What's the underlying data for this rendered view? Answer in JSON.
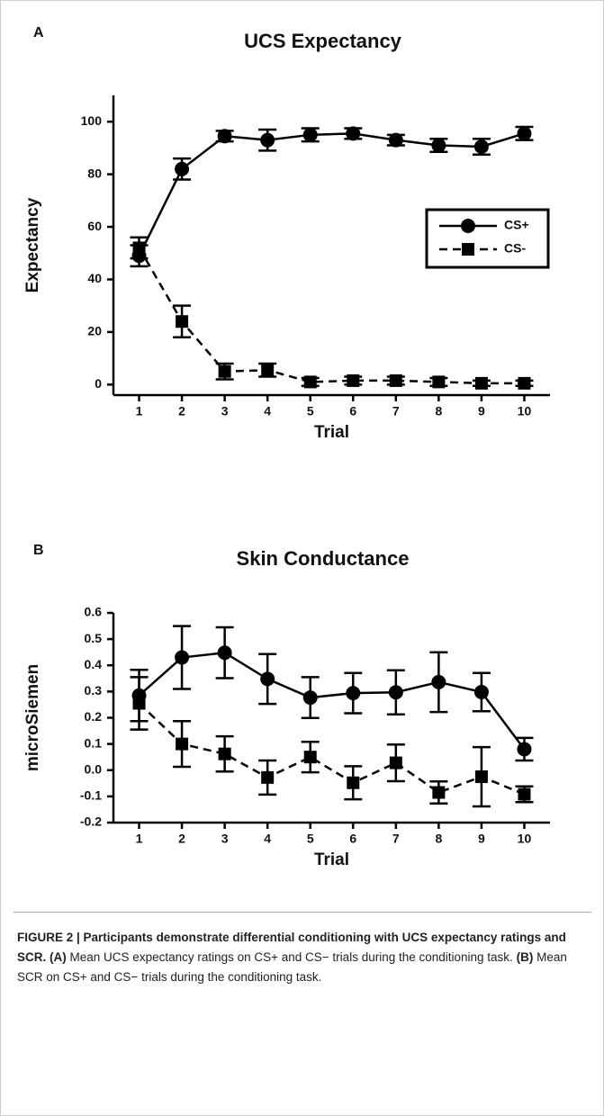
{
  "chart_data": [
    {
      "type": "line",
      "panel": "A",
      "title": "UCS Expectancy",
      "xlabel": "Trial",
      "ylabel": "Expectancy",
      "x": [
        1,
        2,
        3,
        4,
        5,
        6,
        7,
        8,
        9,
        10
      ],
      "xlim": [
        0.4,
        10.6
      ],
      "xticks": [
        1,
        2,
        3,
        4,
        5,
        6,
        7,
        8,
        9,
        10
      ],
      "ylim": [
        -4,
        110
      ],
      "yticks": [
        0,
        20,
        40,
        60,
        80,
        100
      ],
      "legend": "right",
      "series": [
        {
          "name": "CS+",
          "color": "#000000",
          "marker": "circle",
          "dash": false,
          "values": [
            49,
            82,
            94.5,
            93,
            95,
            95.5,
            93,
            91,
            90.5,
            95.5
          ],
          "errors": [
            4,
            4,
            2,
            4,
            2.5,
            2,
            2,
            2.5,
            3,
            2.5
          ]
        },
        {
          "name": "CS-",
          "color": "#000000",
          "marker": "square",
          "dash": true,
          "values": [
            52,
            24,
            5,
            5.5,
            1,
            1.5,
            1.5,
            1,
            0.5,
            0.5
          ],
          "errors": [
            4,
            6,
            3,
            2.5,
            1.5,
            1.5,
            1.5,
            1.5,
            1,
            1
          ]
        }
      ]
    },
    {
      "type": "line",
      "panel": "B",
      "title": "Skin Conductance",
      "xlabel": "Trial",
      "ylabel": "microSiemen",
      "x": [
        1,
        2,
        3,
        4,
        5,
        6,
        7,
        8,
        9,
        10
      ],
      "xlim": [
        0.4,
        10.6
      ],
      "xticks": [
        1,
        2,
        3,
        4,
        5,
        6,
        7,
        8,
        9,
        10
      ],
      "ylim": [
        -0.2,
        0.6
      ],
      "yticks": [
        -0.2,
        -0.1,
        {
          "value": 0,
          "label": "0.0"
        },
        0.1,
        0.2,
        0.3,
        0.4,
        0.5,
        0.6
      ],
      "series": [
        {
          "name": "CS+",
          "color": "#000000",
          "marker": "circle",
          "dash": false,
          "values": [
            0.285,
            0.43,
            0.448,
            0.348,
            0.277,
            0.294,
            0.297,
            0.336,
            0.298,
            0.08
          ],
          "errors": [
            0.098,
            0.12,
            0.097,
            0.095,
            0.078,
            0.077,
            0.084,
            0.114,
            0.073,
            0.043
          ]
        },
        {
          "name": "CS-",
          "color": "#000000",
          "marker": "square",
          "dash": true,
          "values": [
            0.255,
            0.1,
            0.062,
            -0.028,
            0.05,
            -0.048,
            0.028,
            -0.085,
            -0.025,
            -0.092
          ],
          "errors": [
            0.1,
            0.087,
            0.067,
            0.065,
            0.058,
            0.063,
            0.07,
            0.042,
            0.113,
            0.03
          ]
        }
      ]
    }
  ],
  "caption": {
    "heading": "FIGURE 2 | Participants demonstrate differential conditioning with UCS expectancy ratings and SCR.",
    "parts": [
      {
        "tag": "(A)",
        "text": " Mean UCS expectancy ratings on CS+ and CS− trials during the conditioning task."
      },
      {
        "tag": "(B)",
        "text": " Mean SCR on CS+ and CS− trials during the conditioning task."
      }
    ]
  }
}
